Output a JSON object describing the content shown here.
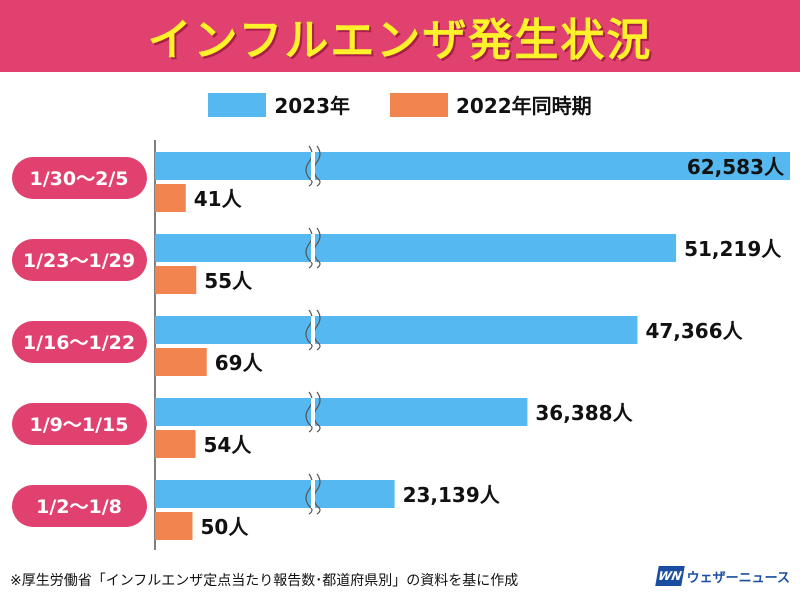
{
  "header": {
    "title": "インフルエンザ発生状況"
  },
  "legend": [
    {
      "label": "2023年",
      "color": "#55b8f0"
    },
    {
      "label": "2022年同時期",
      "color": "#f2844f"
    }
  ],
  "chart_data": {
    "type": "bar",
    "orientation": "horizontal",
    "title": "インフルエンザ発生状況",
    "categories": [
      "1/30〜2/5",
      "1/23〜1/29",
      "1/16〜1/22",
      "1/9〜1/15",
      "1/2〜1/8"
    ],
    "unit": "人",
    "axis_break": true,
    "series": [
      {
        "name": "2023年",
        "color": "#55b8f0",
        "values": [
          62583,
          51219,
          47366,
          36388,
          23139
        ],
        "labels": [
          "62,583人",
          "51,219人",
          "47,366人",
          "36,388人",
          "23,139人"
        ]
      },
      {
        "name": "2022年同時期",
        "color": "#f2844f",
        "values": [
          41,
          55,
          69,
          54,
          50
        ],
        "labels": [
          "41人",
          "55人",
          "69人",
          "54人",
          "50人"
        ]
      }
    ],
    "category_pill_color": "#e0416e",
    "legend_position": "top-center"
  },
  "footer": {
    "source": "※厚生労働省「インフルエンザ定点当たり報告数･都道府県別」の資料を基に作成",
    "logo_mark": "WN",
    "logo_text": "ウェザーニュース"
  }
}
